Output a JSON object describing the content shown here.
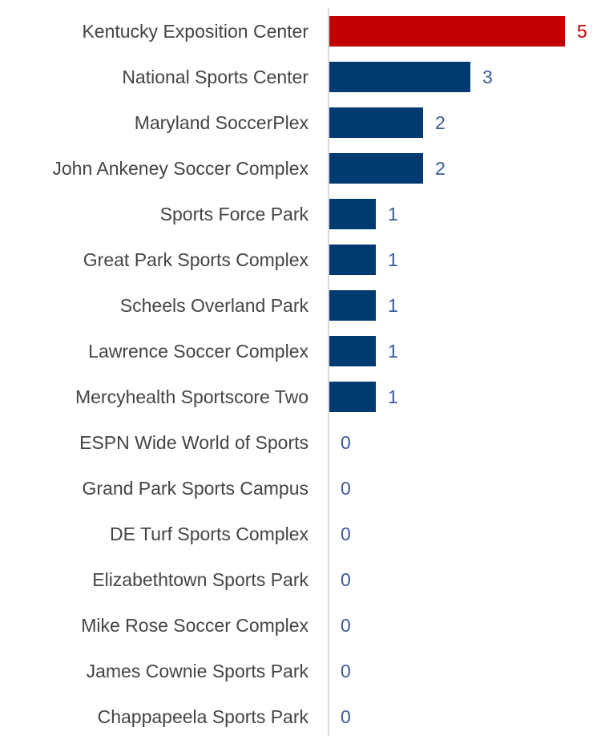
{
  "chart_data": {
    "type": "bar",
    "orientation": "horizontal",
    "categories": [
      "Kentucky Exposition Center",
      "National Sports Center",
      "Maryland SoccerPlex",
      "John Ankeney Soccer Complex",
      "Sports Force Park",
      "Great Park Sports Complex",
      "Scheels Overland Park",
      "Lawrence Soccer Complex",
      "Mercyhealth Sportscore Two",
      "ESPN Wide World of Sports",
      "Grand Park Sports Campus",
      "DE Turf Sports Complex",
      "Elizabethtown Sports Park",
      "Mike Rose Soccer Complex",
      "James Cownie Sports Park",
      "Chappapeela Sports Park"
    ],
    "values": [
      5,
      3,
      2,
      2,
      1,
      1,
      1,
      1,
      1,
      0,
      0,
      0,
      0,
      0,
      0,
      0
    ],
    "highlight_index": 0,
    "title": "",
    "xlabel": "",
    "ylabel": "",
    "xlim": [
      0,
      5
    ],
    "grid": false,
    "legend": "none",
    "colors": {
      "bar": "#003a70",
      "highlight": "#c00000",
      "category_text": "#444444",
      "value_text": "#3a5a9a",
      "highlight_value_text": "#c00000",
      "axis_line": "#d9d9d9"
    }
  }
}
